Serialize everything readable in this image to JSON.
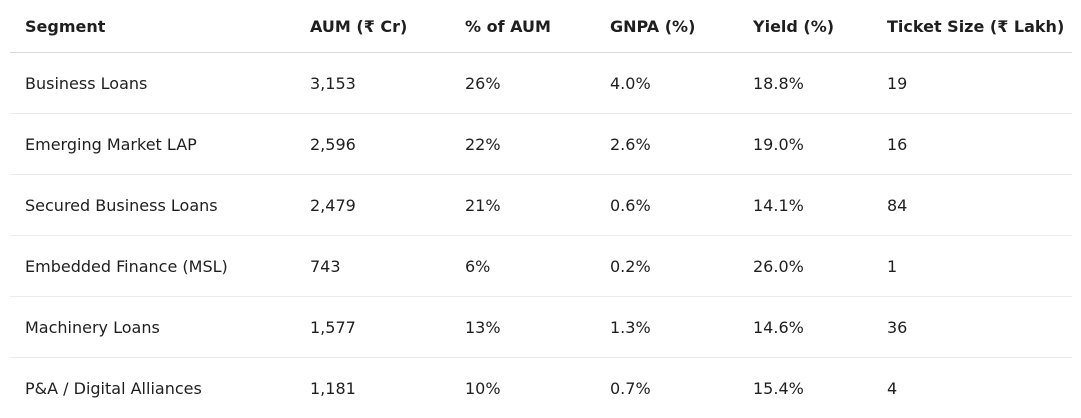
{
  "table": {
    "headers": [
      "Segment",
      "AUM (₹ Cr)",
      "% of AUM",
      "GNPA (%)",
      "Yield (%)",
      "Ticket Size (₹ Lakh)"
    ],
    "rows": [
      [
        "Business Loans",
        "3,153",
        "26%",
        "4.0%",
        "18.8%",
        "19"
      ],
      [
        "Emerging Market LAP",
        "2,596",
        "22%",
        "2.6%",
        "19.0%",
        "16"
      ],
      [
        "Secured Business Loans",
        "2,479",
        "21%",
        "0.6%",
        "14.1%",
        "84"
      ],
      [
        "Embedded Finance (MSL)",
        "743",
        "6%",
        "0.2%",
        "26.0%",
        "1"
      ],
      [
        "Machinery Loans",
        "1,577",
        "13%",
        "1.3%",
        "14.6%",
        "36"
      ],
      [
        "P&A / Digital Alliances",
        "1,181",
        "10%",
        "0.7%",
        "15.4%",
        "4"
      ]
    ]
  }
}
